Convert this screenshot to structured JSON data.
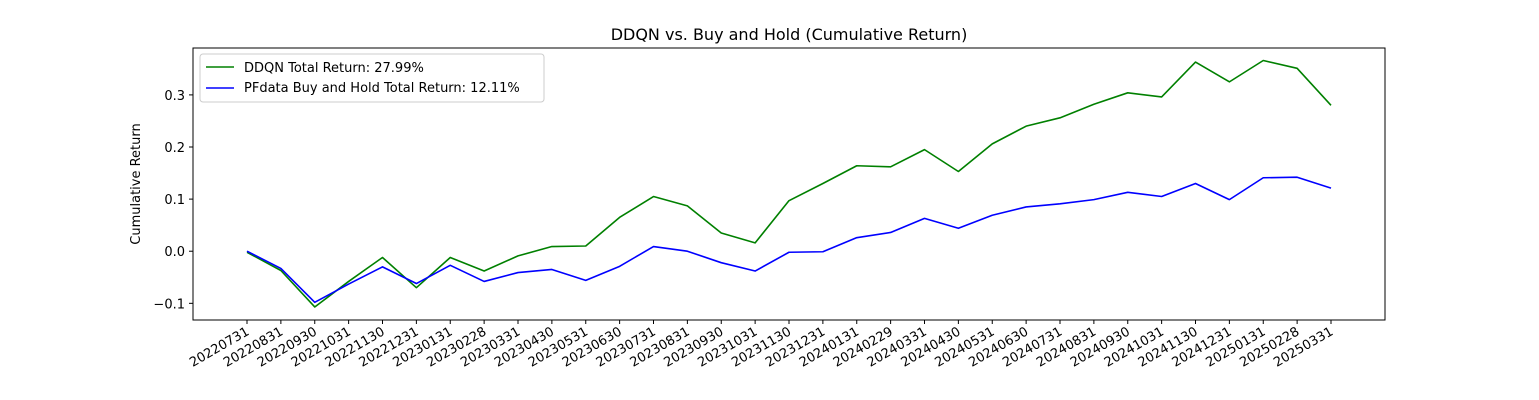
{
  "chart_data": {
    "type": "line",
    "title": "DDQN vs. Buy and Hold (Cumulative Return)",
    "xlabel": "",
    "ylabel": "Cumulative Return",
    "categories": [
      "20220731",
      "20220831",
      "20220930",
      "20221031",
      "20221130",
      "20221231",
      "20230131",
      "20230228",
      "20230331",
      "20230430",
      "20230531",
      "20230630",
      "20230731",
      "20230831",
      "20230930",
      "20231031",
      "20231130",
      "20231231",
      "20240131",
      "20240229",
      "20240331",
      "20240430",
      "20240531",
      "20240630",
      "20240731",
      "20240831",
      "20240930",
      "20241031",
      "20241130",
      "20241231",
      "20250131",
      "20250228",
      "20250331"
    ],
    "yticks": [
      -0.1,
      0.0,
      0.1,
      0.2,
      0.3
    ],
    "ytick_labels": [
      "−0.1",
      "0.0",
      "0.1",
      "0.2",
      "0.3"
    ],
    "ylim": [
      -0.132,
      0.39
    ],
    "grid": false,
    "legend_position": "top-left",
    "series": [
      {
        "name": "DDQN Total Return: 27.99%",
        "color": "#008000",
        "values": [
          -0.002,
          -0.037,
          -0.107,
          -0.058,
          -0.012,
          -0.07,
          -0.012,
          -0.038,
          -0.009,
          0.009,
          0.01,
          0.065,
          0.105,
          0.087,
          0.035,
          0.016,
          0.097,
          0.13,
          0.164,
          0.162,
          0.195,
          0.153,
          0.206,
          0.24,
          0.256,
          0.282,
          0.304,
          0.296,
          0.363,
          0.325,
          0.366,
          0.351,
          0.28
        ]
      },
      {
        "name": "PFdata Buy and Hold Total Return: 12.11%",
        "color": "#0000ff",
        "values": [
          0.0,
          -0.033,
          -0.098,
          -0.063,
          -0.03,
          -0.062,
          -0.027,
          -0.058,
          -0.041,
          -0.035,
          -0.056,
          -0.029,
          0.009,
          0.0,
          -0.022,
          -0.038,
          -0.002,
          -0.001,
          0.026,
          0.036,
          0.063,
          0.044,
          0.069,
          0.085,
          0.091,
          0.099,
          0.113,
          0.105,
          0.13,
          0.099,
          0.141,
          0.142,
          0.121
        ]
      }
    ]
  }
}
